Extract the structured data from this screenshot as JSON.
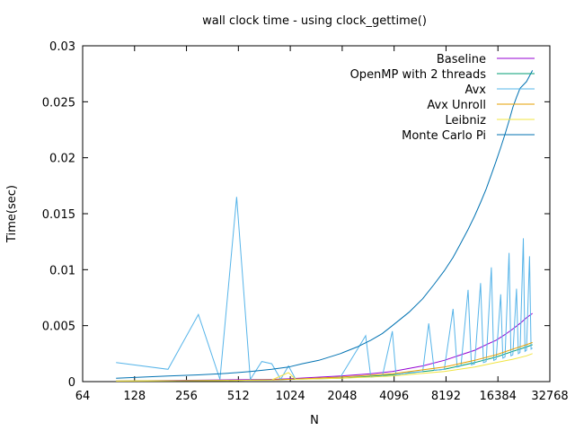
{
  "chart_data": {
    "type": "line",
    "title": "wall clock time - using clock_gettime()",
    "xlabel": "N",
    "ylabel": "Time(sec)",
    "x_scale": "log2",
    "xlim": [
      64,
      32768
    ],
    "ylim": [
      0,
      0.03
    ],
    "x_ticks": [
      64,
      128,
      256,
      512,
      1024,
      2048,
      4096,
      8192,
      16384,
      32768
    ],
    "x_tick_labels": [
      "64",
      "128",
      "256",
      "512",
      "1024",
      "2048",
      "4096",
      "8192",
      "16384",
      "32768"
    ],
    "y_ticks": [
      0,
      0.005,
      0.01,
      0.015,
      0.02,
      0.025,
      0.03
    ],
    "y_tick_labels": [
      "0",
      "0.005",
      "0.01",
      "0.015",
      "0.02",
      "0.025",
      "0.03"
    ],
    "grid": false,
    "legend_position": "top-right",
    "series": [
      {
        "name": "Baseline",
        "color": "#9400d3",
        "points": [
          [
            100,
            5e-05
          ],
          [
            200,
            0.0001
          ],
          [
            400,
            0.00015
          ],
          [
            800,
            0.0002
          ],
          [
            1000,
            0.00025
          ],
          [
            2000,
            0.0005
          ],
          [
            3000,
            0.0007
          ],
          [
            4000,
            0.0009
          ],
          [
            6000,
            0.0014
          ],
          [
            8000,
            0.0019
          ],
          [
            10000,
            0.0024
          ],
          [
            12000,
            0.0028
          ],
          [
            14000,
            0.0033
          ],
          [
            16000,
            0.0037
          ],
          [
            18000,
            0.0042
          ],
          [
            20000,
            0.0047
          ],
          [
            22000,
            0.0052
          ],
          [
            24000,
            0.0057
          ],
          [
            26000,
            0.0061
          ]
        ]
      },
      {
        "name": "OpenMP with 2 threads",
        "color": "#009e73",
        "points": [
          [
            100,
            5e-05
          ],
          [
            400,
            0.0001
          ],
          [
            800,
            0.00015
          ],
          [
            1000,
            0.0002
          ],
          [
            2000,
            0.0003
          ],
          [
            4000,
            0.0006
          ],
          [
            8000,
            0.0011
          ],
          [
            12000,
            0.0017
          ],
          [
            16000,
            0.0022
          ],
          [
            20000,
            0.0027
          ],
          [
            24000,
            0.0031
          ],
          [
            26000,
            0.0033
          ]
        ]
      },
      {
        "name": "Avx",
        "color": "#56b4e9",
        "points": [
          [
            100,
            0.0017
          ],
          [
            200,
            0.0011
          ],
          [
            300,
            0.006
          ],
          [
            400,
            0.0002
          ],
          [
            500,
            0.0165
          ],
          [
            600,
            0.0002
          ],
          [
            700,
            0.0018
          ],
          [
            800,
            0.0016
          ],
          [
            900,
            0.0002
          ],
          [
            1000,
            0.0014
          ],
          [
            1100,
            0.0002
          ],
          [
            2000,
            0.0004
          ],
          [
            2800,
            0.0041
          ],
          [
            3000,
            0.0004
          ],
          [
            3500,
            0.0005
          ],
          [
            4000,
            0.0045
          ],
          [
            4200,
            0.0006
          ],
          [
            5000,
            0.0008
          ],
          [
            6000,
            0.0009
          ],
          [
            6500,
            0.0052
          ],
          [
            7000,
            0.001
          ],
          [
            8000,
            0.0011
          ],
          [
            9000,
            0.0065
          ],
          [
            9500,
            0.0013
          ],
          [
            10000,
            0.0014
          ],
          [
            11000,
            0.0082
          ],
          [
            11500,
            0.0015
          ],
          [
            12000,
            0.0016
          ],
          [
            13000,
            0.0088
          ],
          [
            13500,
            0.0017
          ],
          [
            14000,
            0.0018
          ],
          [
            15000,
            0.0102
          ],
          [
            15500,
            0.0019
          ],
          [
            16000,
            0.002
          ],
          [
            17000,
            0.0078
          ],
          [
            17500,
            0.0021
          ],
          [
            18000,
            0.0022
          ],
          [
            19000,
            0.0115
          ],
          [
            19500,
            0.0023
          ],
          [
            20000,
            0.0024
          ],
          [
            21000,
            0.0083
          ],
          [
            21500,
            0.0025
          ],
          [
            22000,
            0.0026
          ],
          [
            23000,
            0.0128
          ],
          [
            23500,
            0.0027
          ],
          [
            24000,
            0.0028
          ],
          [
            25000,
            0.0112
          ],
          [
            25500,
            0.0029
          ],
          [
            26000,
            0.003
          ]
        ]
      },
      {
        "name": "Avx Unroll",
        "color": "#e69f00",
        "points": [
          [
            100,
            5e-05
          ],
          [
            400,
            0.0001
          ],
          [
            800,
            0.00015
          ],
          [
            1000,
            0.0002
          ],
          [
            2000,
            0.0004
          ],
          [
            4000,
            0.0007
          ],
          [
            8000,
            0.0013
          ],
          [
            12000,
            0.0019
          ],
          [
            16000,
            0.0024
          ],
          [
            20000,
            0.0029
          ],
          [
            24000,
            0.0033
          ],
          [
            26000,
            0.0035
          ]
        ]
      },
      {
        "name": "Leibniz",
        "color": "#f0e442",
        "points": [
          [
            100,
            5e-05
          ],
          [
            400,
            0.0001
          ],
          [
            800,
            0.00015
          ],
          [
            1000,
            0.0008
          ],
          [
            1100,
            0.0002
          ],
          [
            2000,
            0.0003
          ],
          [
            4000,
            0.0005
          ],
          [
            8000,
            0.0009
          ],
          [
            12000,
            0.0013
          ],
          [
            16000,
            0.0017
          ],
          [
            20000,
            0.002
          ],
          [
            24000,
            0.0023
          ],
          [
            26000,
            0.0025
          ]
        ]
      },
      {
        "name": "Monte Carlo Pi",
        "color": "#0072b2",
        "points": [
          [
            100,
            0.0003
          ],
          [
            200,
            0.0005
          ],
          [
            300,
            0.0006
          ],
          [
            400,
            0.0007
          ],
          [
            500,
            0.0008
          ],
          [
            600,
            0.0009
          ],
          [
            800,
            0.0011
          ],
          [
            1000,
            0.0013
          ],
          [
            1200,
            0.0016
          ],
          [
            1500,
            0.0019
          ],
          [
            2000,
            0.0025
          ],
          [
            2500,
            0.0031
          ],
          [
            3000,
            0.0037
          ],
          [
            3500,
            0.0043
          ],
          [
            4000,
            0.005
          ],
          [
            5000,
            0.0062
          ],
          [
            6000,
            0.0074
          ],
          [
            7000,
            0.0087
          ],
          [
            8000,
            0.0099
          ],
          [
            9000,
            0.0111
          ],
          [
            10000,
            0.0124
          ],
          [
            11000,
            0.0136
          ],
          [
            12000,
            0.0148
          ],
          [
            13000,
            0.016
          ],
          [
            14000,
            0.0172
          ],
          [
            15000,
            0.0185
          ],
          [
            16000,
            0.0197
          ],
          [
            17000,
            0.0209
          ],
          [
            18000,
            0.0221
          ],
          [
            19000,
            0.0233
          ],
          [
            20000,
            0.0245
          ],
          [
            21000,
            0.0254
          ],
          [
            22000,
            0.0262
          ],
          [
            24000,
            0.0268
          ],
          [
            26000,
            0.0278
          ]
        ]
      }
    ]
  }
}
